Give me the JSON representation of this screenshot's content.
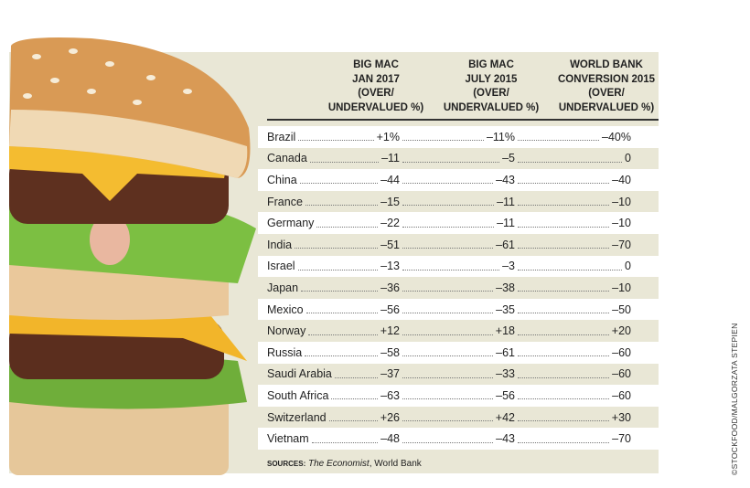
{
  "table": {
    "headers": [
      [
        "BIG MAC",
        "JAN 2017",
        "(OVER/",
        "UNDERVALUED %)"
      ],
      [
        "BIG MAC",
        "JULY 2015",
        "(OVER/",
        "UNDERVALUED %)"
      ],
      [
        "WORLD BANK",
        "CONVERSION 2015",
        "(OVER/",
        "UNDERVALUED %)"
      ]
    ],
    "rows": [
      [
        "Brazil",
        "+1%",
        "–11%",
        "–40%"
      ],
      [
        "Canada",
        "–11",
        "–5",
        "0"
      ],
      [
        "China",
        "–44",
        "–43",
        "–40"
      ],
      [
        "France",
        "–15",
        "–11",
        "–10"
      ],
      [
        "Germany",
        "–22",
        "–11",
        "–10"
      ],
      [
        "India",
        "–51",
        "–61",
        "–70"
      ],
      [
        "Israel",
        "–13",
        "–3",
        "0"
      ],
      [
        "Japan",
        "–36",
        "–38",
        "–10"
      ],
      [
        "Mexico",
        "–56",
        "–35",
        "–50"
      ],
      [
        "Norway",
        "+12",
        "+18",
        "+20"
      ],
      [
        "Russia",
        "–58",
        "–61",
        "–60"
      ],
      [
        "Saudi Arabia",
        "–37",
        "–33",
        "–60"
      ],
      [
        "South Africa",
        "–63",
        "–56",
        "–60"
      ],
      [
        "Switzerland",
        "+26",
        "+42",
        "+30"
      ],
      [
        "Vietnam",
        "–48",
        "–43",
        "–70"
      ]
    ]
  },
  "sources": {
    "label": "SOURCES:",
    "publication": "The Economist",
    "rest": ", World Bank"
  },
  "credit": "©STOCKFOOD/MALGORZATA STEPIEN"
}
